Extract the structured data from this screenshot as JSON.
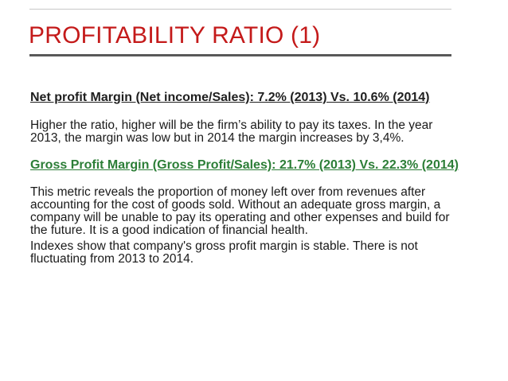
{
  "slide": {
    "title": "PROFITABILITY RATIO (1)",
    "colors": {
      "title": "#c41a1a",
      "title_rule": "#595959",
      "heading_net": "#1f1f1f",
      "heading_gross": "#2c7e37",
      "body": "#1a1a1a"
    },
    "sections": [
      {
        "heading": "Net profit Margin (Net income/Sales): 7.2% (2013) Vs. 10.6% (2014)",
        "paragraphs": [
          "Higher the ratio, higher will be the firm’s ability to pay its taxes. In the year 2013, the margin was low but in 2014 the margin increases by 3,4%."
        ]
      },
      {
        "heading": "Gross Profit Margin (Gross Profit/Sales): 21.7% (2013) Vs. 22.3% (2014)",
        "paragraphs": [
          "This metric reveals the proportion of money left over from revenues after accounting for the cost of goods sold. Without an adequate gross margin, a company will be unable to pay its operating and other expenses and build for the future. It is a good indication of financial health.",
          "Indexes show that company's gross profit margin is stable. There is not fluctuating from 2013 to 2014."
        ]
      }
    ]
  }
}
